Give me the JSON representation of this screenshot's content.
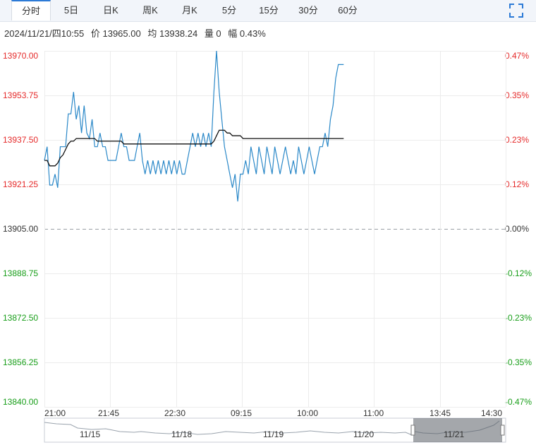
{
  "tabs": [
    {
      "label": "分时",
      "active": true
    },
    {
      "label": "5日"
    },
    {
      "label": "日K"
    },
    {
      "label": "周K"
    },
    {
      "label": "月K"
    },
    {
      "label": "5分"
    },
    {
      "label": "15分"
    },
    {
      "label": "30分"
    },
    {
      "label": "60分"
    }
  ],
  "info": {
    "datetime": "2024/11/21/四10:55",
    "price": "价 13965.00",
    "avg": "均 13938.24",
    "volume": "量 0",
    "change": "幅 0.43%"
  },
  "colors": {
    "up": "#e52b2b",
    "down": "#189e19",
    "price_line": "#2a88c8",
    "avg_line": "#111111",
    "grid": "#e8e8e8"
  },
  "chart_data": {
    "type": "line",
    "y_labels": [
      "13970.00",
      "13953.75",
      "13937.50",
      "13921.25",
      "13905.00",
      "13888.75",
      "13872.50",
      "13856.25",
      "13840.00"
    ],
    "pct_labels": [
      "0.47%",
      "0.35%",
      "0.23%",
      "0.12%",
      "0.00%",
      "-0.12%",
      "-0.23%",
      "-0.35%",
      "-0.47%"
    ],
    "x_labels": [
      "21:00",
      "21:45",
      "22:30",
      "09:15",
      "10:00",
      "11:00",
      "13:45",
      "14:30"
    ],
    "ylim": [
      13840,
      13970
    ],
    "base_price": 13905.0,
    "series": [
      {
        "values": [
          13930,
          13935,
          13921,
          13921,
          13925,
          13920,
          13935,
          13935,
          13935,
          13947,
          13947,
          13955,
          13945,
          13950,
          13940,
          13950,
          13940,
          13938,
          13945,
          13935,
          13935,
          13940,
          13935,
          13935,
          13930,
          13930,
          13930,
          13930,
          13935,
          13940,
          13935,
          13935,
          13930,
          13930,
          13930,
          13935,
          13940,
          13930,
          13925,
          13930,
          13925,
          13930,
          13925,
          13930,
          13925,
          13930,
          13925,
          13930,
          13925,
          13930,
          13925,
          13930,
          13925,
          13925,
          13930,
          13935,
          13940,
          13935,
          13940,
          13935,
          13940,
          13935,
          13940,
          13935,
          13955,
          13970,
          13955,
          13945,
          13935,
          13930,
          13925,
          13920,
          13925,
          13915,
          13925,
          13925,
          13930,
          13925,
          13935,
          13930,
          13925,
          13935,
          13930,
          13925,
          13935,
          13930,
          13925,
          13935,
          13930,
          13925,
          13930,
          13935,
          13930,
          13925,
          13930,
          13925,
          13935,
          13930,
          13925,
          13930,
          13935,
          13930,
          13925,
          13930,
          13935,
          13935,
          13940,
          13935,
          13945,
          13950,
          13960,
          13965,
          13965,
          13965
        ]
      },
      {
        "values": [
          13930,
          13930,
          13928,
          13928,
          13928,
          13929,
          13931,
          13932,
          13934,
          13936,
          13937,
          13937,
          13938,
          13938,
          13938,
          13938,
          13938,
          13938,
          13938,
          13938,
          13937,
          13937,
          13937,
          13937,
          13937,
          13937,
          13937,
          13937,
          13937,
          13937,
          13936,
          13936,
          13936,
          13936,
          13936,
          13936,
          13936,
          13936,
          13936,
          13936,
          13936,
          13936,
          13936,
          13936,
          13936,
          13936,
          13936,
          13936,
          13936,
          13936,
          13936,
          13936,
          13936,
          13936,
          13936,
          13936,
          13936,
          13936,
          13936,
          13936,
          13936,
          13936,
          13936,
          13936,
          13937,
          13939,
          13941,
          13941,
          13941,
          13940,
          13940,
          13939,
          13939,
          13939,
          13939,
          13938,
          13938,
          13938,
          13938,
          13938,
          13938,
          13938,
          13938,
          13938,
          13938,
          13938,
          13938,
          13938,
          13938,
          13938,
          13938,
          13938,
          13938,
          13938,
          13938,
          13938,
          13938,
          13938,
          13938,
          13938,
          13938,
          13938,
          13938,
          13938,
          13938,
          13938,
          13938,
          13938,
          13938,
          13938,
          13938,
          13938,
          13938,
          13938
        ]
      }
    ]
  },
  "nav": {
    "dates": [
      "11/15",
      "11/18",
      "11/19",
      "11/20",
      "11/21"
    ]
  }
}
